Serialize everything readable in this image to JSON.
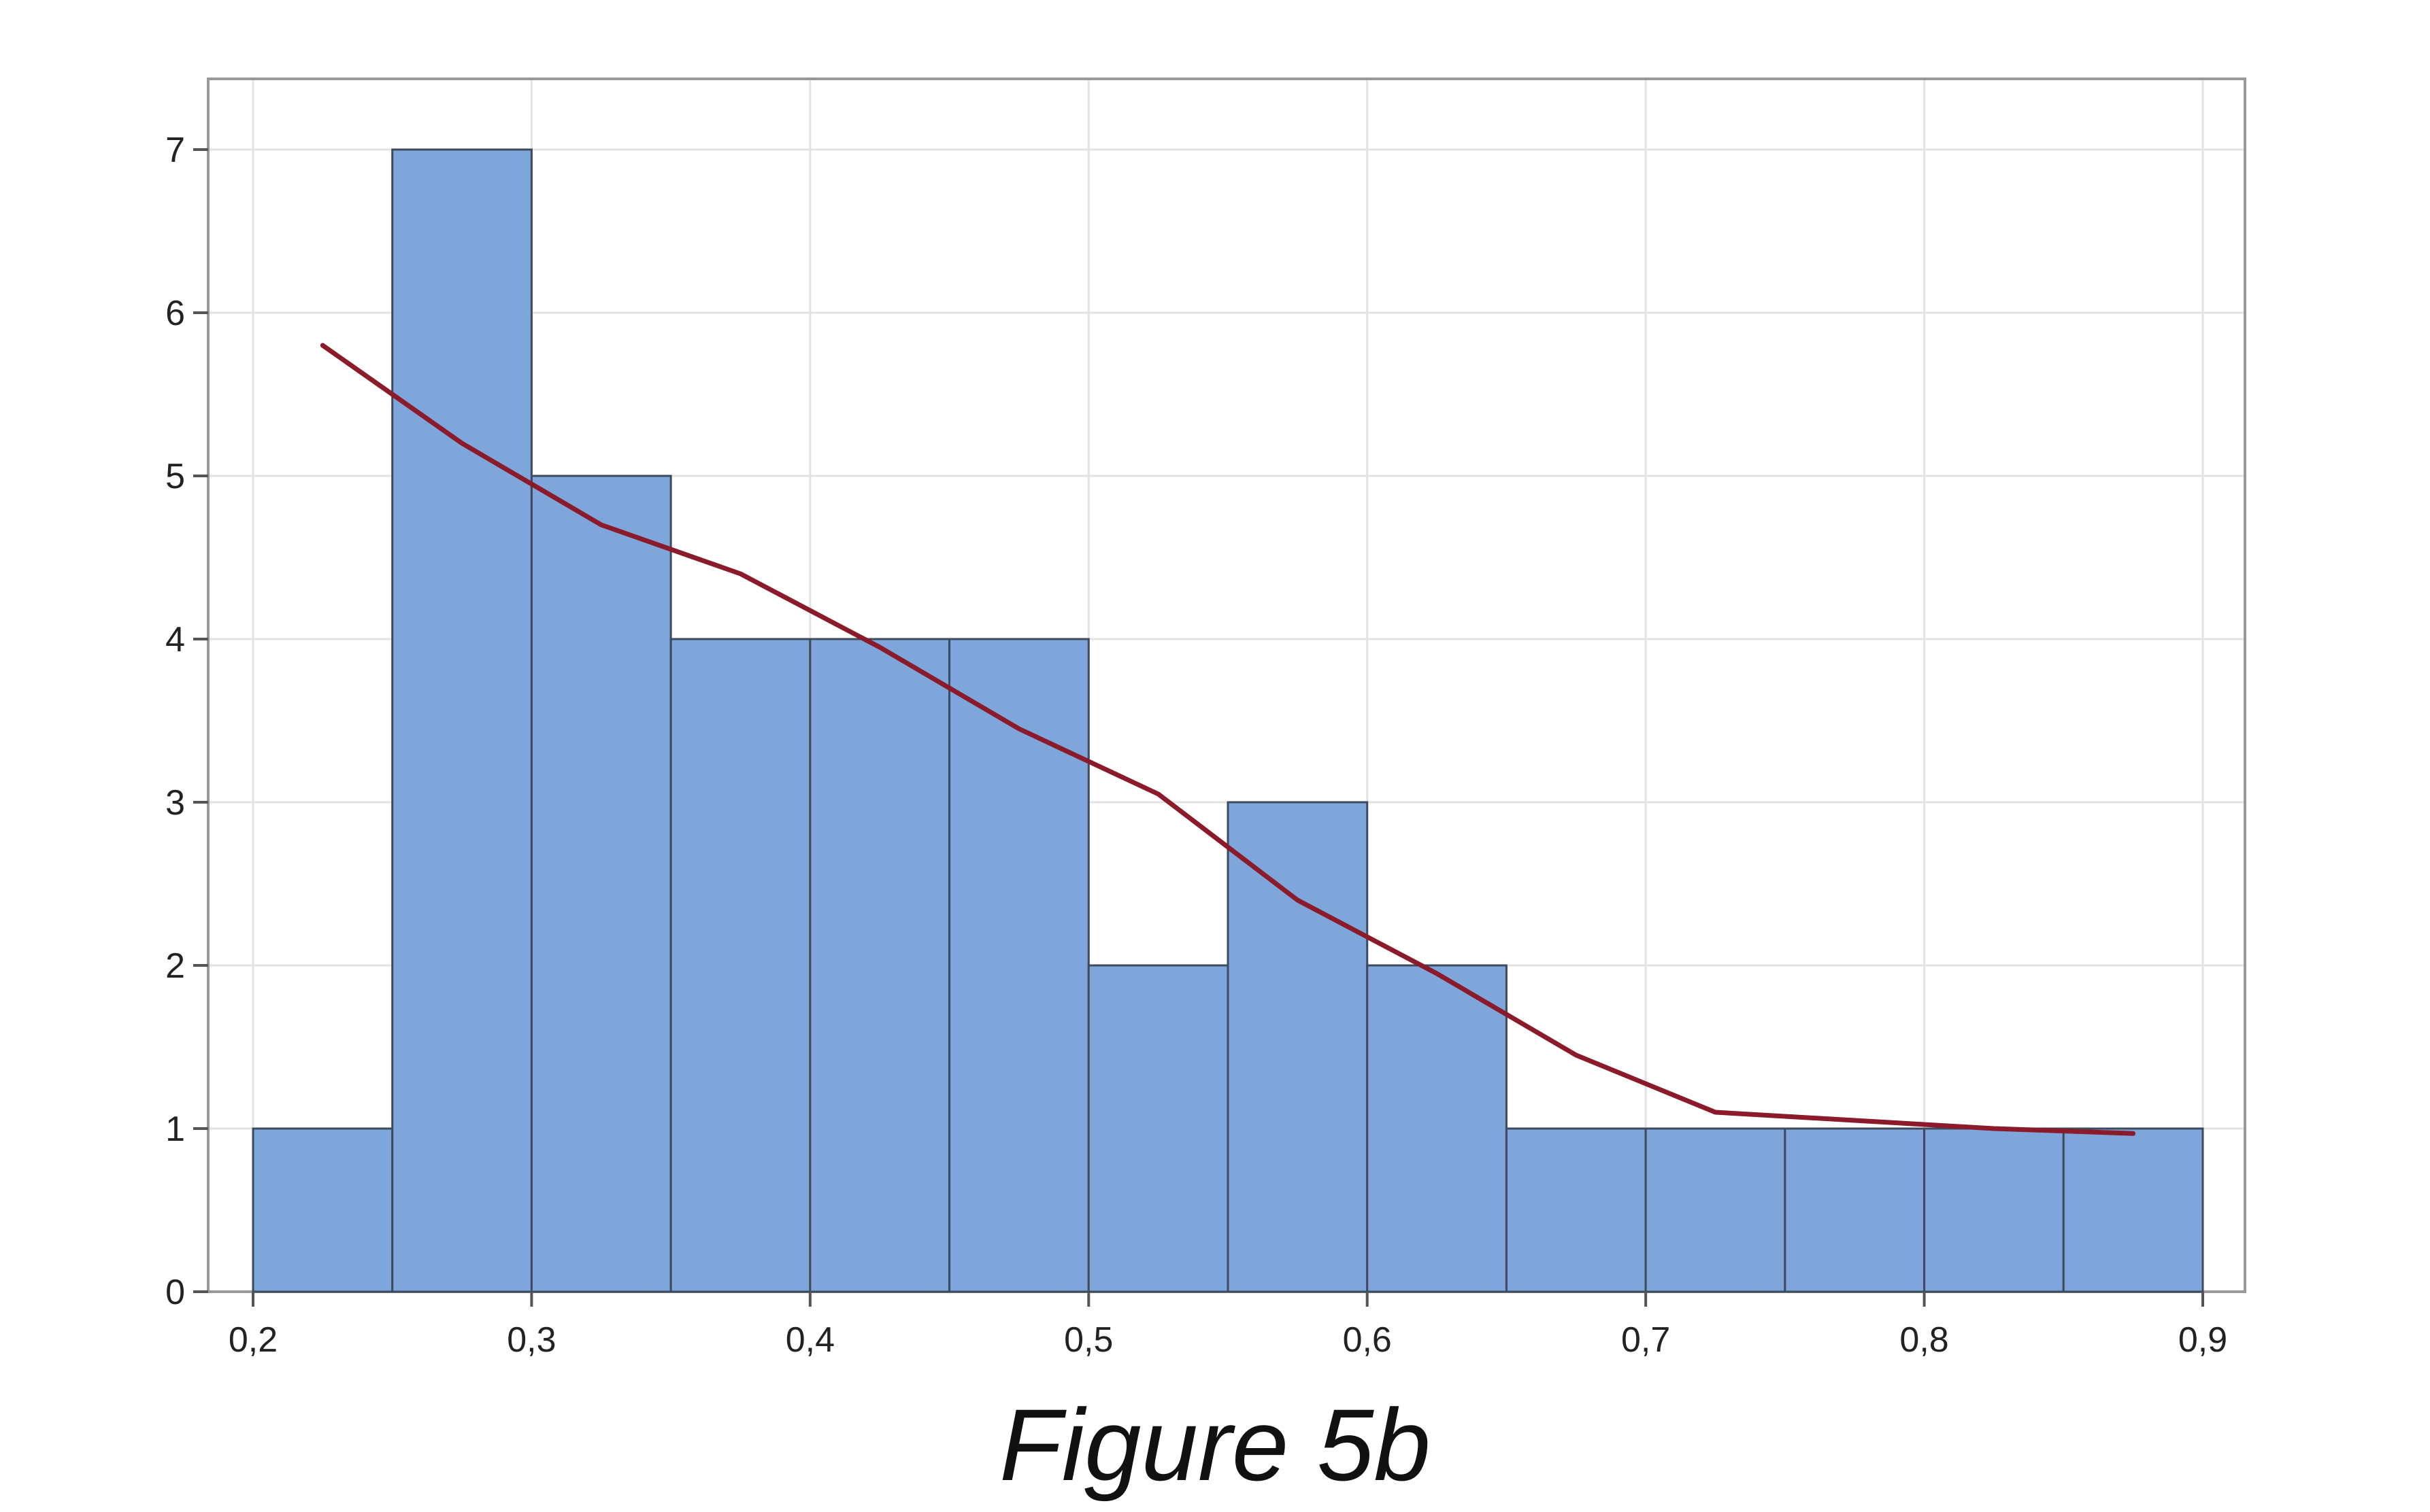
{
  "caption": "Figure 5b",
  "colors": {
    "bar_fill": "#7EA6DA",
    "bar_stroke": "#3E4A5E",
    "curve": "#8B1A2B",
    "grid": "#E3E3E3",
    "frame": "#999999"
  },
  "chart_data": {
    "type": "bar",
    "subtype": "histogram with fitted curve",
    "title": "",
    "xlabel": "",
    "ylabel": "",
    "xlim": [
      0.2,
      0.9
    ],
    "ylim": [
      0,
      7
    ],
    "grid": true,
    "x_ticks": [
      0.2,
      0.3,
      0.4,
      0.5,
      0.6,
      0.7,
      0.8,
      0.9
    ],
    "x_tick_labels": [
      "0,2",
      "0,3",
      "0,4",
      "0,5",
      "0,6",
      "0,7",
      "0,8",
      "0,9"
    ],
    "y_ticks": [
      0,
      1,
      2,
      3,
      4,
      5,
      6,
      7
    ],
    "y_tick_labels": [
      "0",
      "1",
      "2",
      "3",
      "4",
      "5",
      "6",
      "7"
    ],
    "bins": [
      {
        "start": 0.2,
        "end": 0.25,
        "count": 1
      },
      {
        "start": 0.25,
        "end": 0.3,
        "count": 7
      },
      {
        "start": 0.3,
        "end": 0.35,
        "count": 5
      },
      {
        "start": 0.35,
        "end": 0.4,
        "count": 4
      },
      {
        "start": 0.4,
        "end": 0.45,
        "count": 4
      },
      {
        "start": 0.45,
        "end": 0.5,
        "count": 4
      },
      {
        "start": 0.5,
        "end": 0.55,
        "count": 2
      },
      {
        "start": 0.55,
        "end": 0.6,
        "count": 3
      },
      {
        "start": 0.6,
        "end": 0.65,
        "count": 2
      },
      {
        "start": 0.65,
        "end": 0.7,
        "count": 1
      },
      {
        "start": 0.7,
        "end": 0.75,
        "count": 1
      },
      {
        "start": 0.75,
        "end": 0.8,
        "count": 1
      },
      {
        "start": 0.8,
        "end": 0.85,
        "count": 1
      },
      {
        "start": 0.85,
        "end": 0.9,
        "count": 1
      }
    ],
    "curve": {
      "type": "line",
      "x": [
        0.225,
        0.275,
        0.325,
        0.375,
        0.425,
        0.475,
        0.525,
        0.575,
        0.625,
        0.675,
        0.725,
        0.775,
        0.825,
        0.875
      ],
      "y": [
        5.8,
        5.2,
        4.7,
        4.4,
        3.95,
        3.45,
        3.05,
        2.4,
        1.95,
        1.45,
        1.1,
        1.05,
        1.0,
        0.97
      ]
    }
  }
}
